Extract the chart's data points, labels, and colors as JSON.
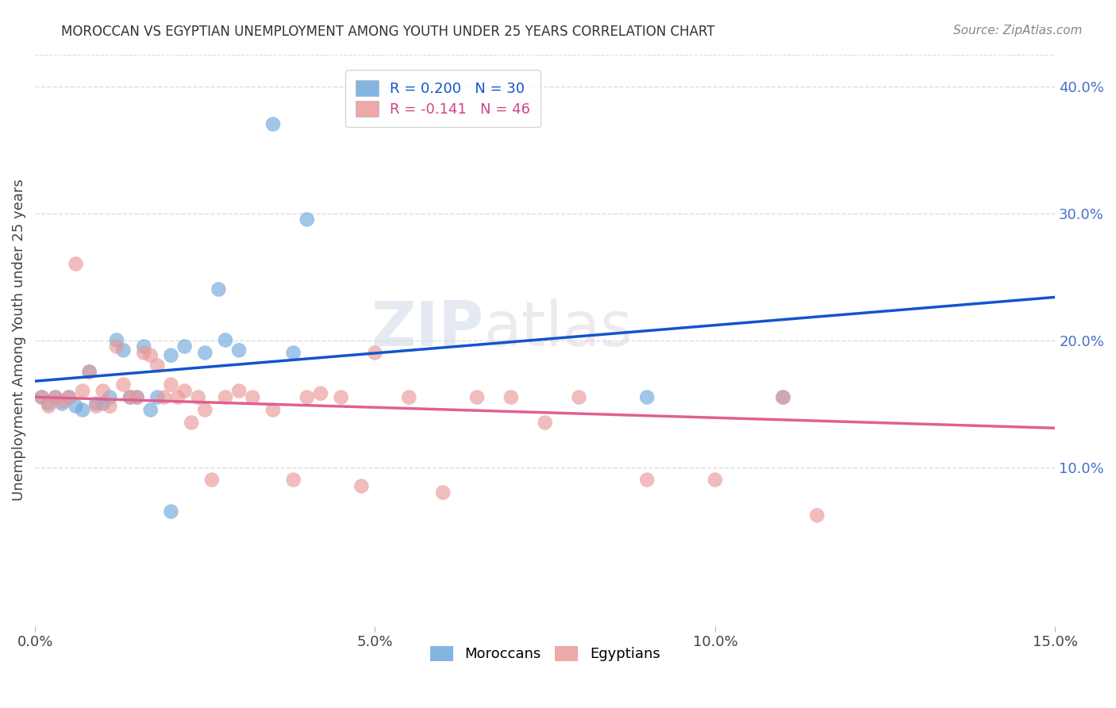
{
  "title": "MOROCCAN VS EGYPTIAN UNEMPLOYMENT AMONG YOUTH UNDER 25 YEARS CORRELATION CHART",
  "source": "Source: ZipAtlas.com",
  "ylabel": "Unemployment Among Youth under 25 years",
  "xlabel_ticks": [
    "0.0%",
    "5.0%",
    "10.0%",
    "15.0%"
  ],
  "ylabel_ticks": [
    "10.0%",
    "20.0%",
    "30.0%",
    "40.0%"
  ],
  "xlim": [
    0.0,
    0.15
  ],
  "ylim": [
    -0.025,
    0.425
  ],
  "moroccan_color": "#6fa8dc",
  "egyptian_color": "#ea9999",
  "moroccan_line_color": "#1155cc",
  "egyptian_line_color": "#e06090",
  "moroccan_R": 0.2,
  "moroccan_N": 30,
  "egyptian_R": -0.141,
  "egyptian_N": 46,
  "moroccan_scatter_x": [
    0.001,
    0.002,
    0.003,
    0.004,
    0.005,
    0.006,
    0.007,
    0.008,
    0.009,
    0.01,
    0.011,
    0.012,
    0.013,
    0.014,
    0.015,
    0.016,
    0.017,
    0.018,
    0.02,
    0.022,
    0.025,
    0.027,
    0.028,
    0.03,
    0.035,
    0.038,
    0.04,
    0.02,
    0.09,
    0.11
  ],
  "moroccan_scatter_y": [
    0.155,
    0.15,
    0.155,
    0.15,
    0.155,
    0.148,
    0.145,
    0.175,
    0.15,
    0.15,
    0.155,
    0.2,
    0.192,
    0.155,
    0.155,
    0.195,
    0.145,
    0.155,
    0.188,
    0.195,
    0.19,
    0.24,
    0.2,
    0.192,
    0.37,
    0.19,
    0.295,
    0.065,
    0.155,
    0.155
  ],
  "egyptian_scatter_x": [
    0.001,
    0.002,
    0.003,
    0.004,
    0.005,
    0.006,
    0.007,
    0.008,
    0.009,
    0.01,
    0.011,
    0.012,
    0.013,
    0.014,
    0.015,
    0.016,
    0.017,
    0.018,
    0.019,
    0.02,
    0.021,
    0.022,
    0.023,
    0.024,
    0.025,
    0.026,
    0.028,
    0.03,
    0.032,
    0.035,
    0.038,
    0.04,
    0.042,
    0.045,
    0.048,
    0.05,
    0.055,
    0.06,
    0.065,
    0.07,
    0.075,
    0.08,
    0.09,
    0.1,
    0.11,
    0.115
  ],
  "egyptian_scatter_y": [
    0.155,
    0.148,
    0.155,
    0.152,
    0.155,
    0.26,
    0.16,
    0.175,
    0.148,
    0.16,
    0.148,
    0.195,
    0.165,
    0.155,
    0.155,
    0.19,
    0.188,
    0.18,
    0.155,
    0.165,
    0.155,
    0.16,
    0.135,
    0.155,
    0.145,
    0.09,
    0.155,
    0.16,
    0.155,
    0.145,
    0.09,
    0.155,
    0.158,
    0.155,
    0.085,
    0.19,
    0.155,
    0.08,
    0.155,
    0.155,
    0.135,
    0.155,
    0.09,
    0.09,
    0.155,
    0.062
  ],
  "background_color": "#ffffff",
  "grid_color": "#dddddd",
  "watermark_text": "ZIPatlas",
  "ytick_vals": [
    0.1,
    0.2,
    0.3,
    0.4
  ],
  "xtick_vals": [
    0.0,
    0.05,
    0.1,
    0.15
  ]
}
